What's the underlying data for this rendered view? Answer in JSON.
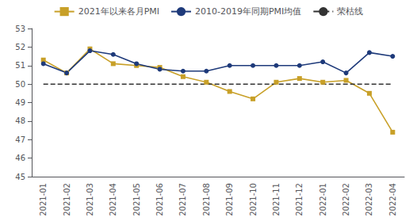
{
  "chart_data": {
    "type": "line",
    "categories": [
      "2021-01",
      "2021-02",
      "2021-03",
      "2021-04",
      "2021-05",
      "2021-06",
      "2021-07",
      "2021-08",
      "2021-09",
      "2021-10",
      "2021-11",
      "2021-12",
      "2022-01",
      "2022-02",
      "2022-03",
      "2022-04"
    ],
    "series": [
      {
        "name": "2021年以来各月PMI",
        "color": "#C8A028",
        "marker": "square",
        "line_style": "solid",
        "values": [
          51.3,
          50.6,
          51.9,
          51.1,
          51.0,
          50.9,
          50.4,
          50.1,
          49.6,
          49.2,
          50.1,
          50.3,
          50.1,
          50.2,
          49.5,
          47.4
        ]
      },
      {
        "name": "2010-2019年同期PMI均值",
        "color": "#1E3A7A",
        "marker": "circle",
        "line_style": "solid",
        "values": [
          51.1,
          50.6,
          51.8,
          51.6,
          51.1,
          50.8,
          50.7,
          50.7,
          51.0,
          51.0,
          51.0,
          51.0,
          51.2,
          50.6,
          51.7,
          51.5
        ]
      },
      {
        "name": "荣枯线",
        "color": "#333333",
        "marker": "none",
        "line_style": "dashed",
        "values": [
          50.0,
          50.0,
          50.0,
          50.0,
          50.0,
          50.0,
          50.0,
          50.0,
          50.0,
          50.0,
          50.0,
          50.0,
          50.0,
          50.0,
          50.0,
          50.0
        ]
      }
    ],
    "ylim": [
      45,
      53
    ],
    "yticks": [
      45,
      46,
      47,
      48,
      49,
      50,
      51,
      52,
      53
    ],
    "grid": false,
    "legend": "top"
  }
}
